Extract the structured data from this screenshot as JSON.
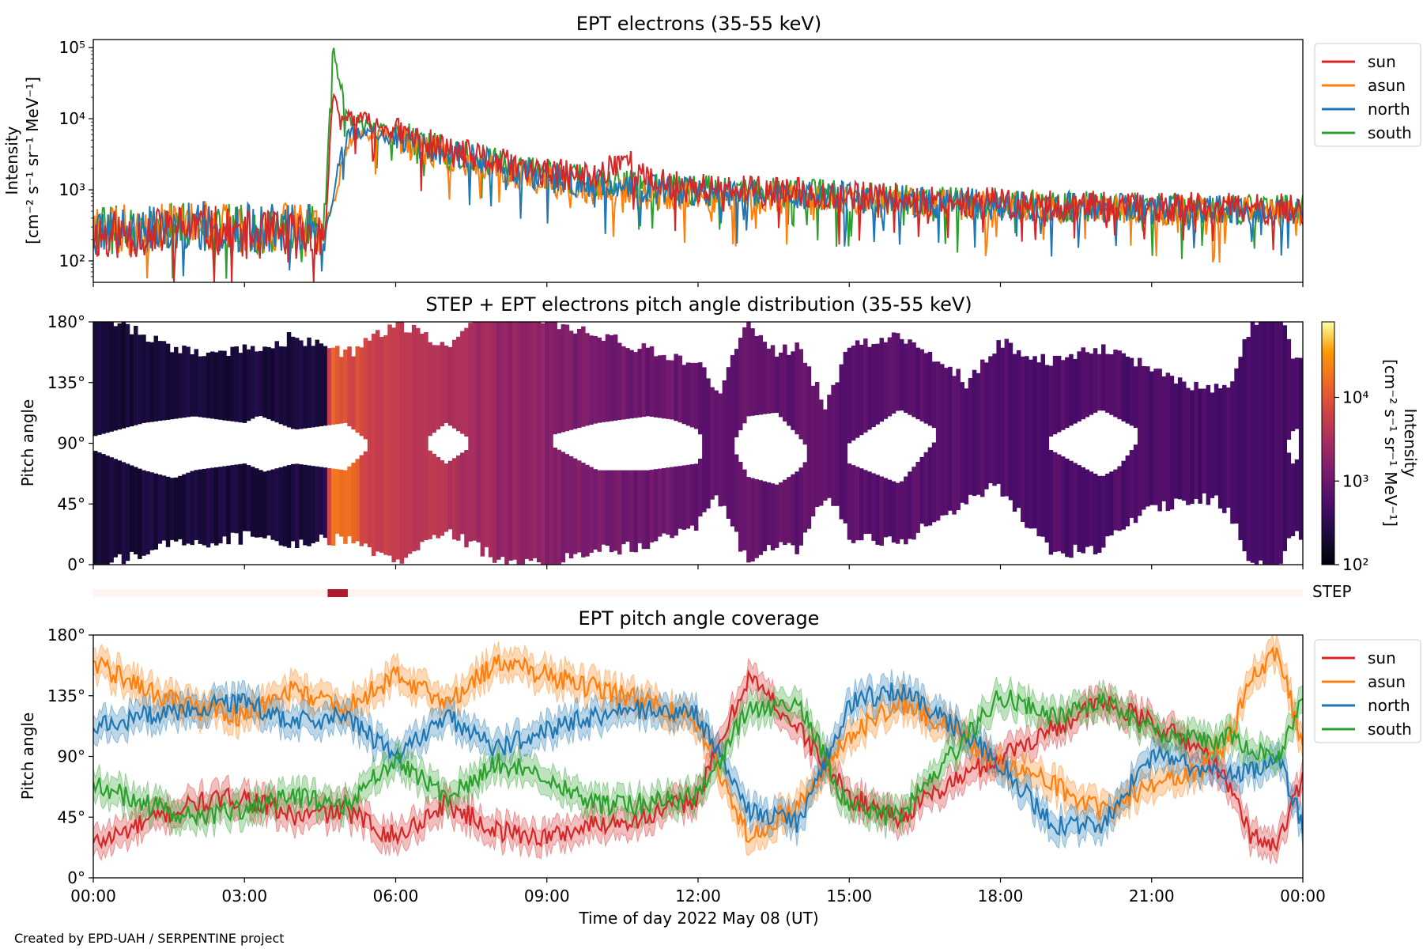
{
  "figure": {
    "credit": "Created by EPD-UAH / SERPENTINE project",
    "xlabel": "Time of day 2022 May 08 (UT)",
    "xticks": [
      "00:00",
      "03:00",
      "06:00",
      "09:00",
      "12:00",
      "15:00",
      "18:00",
      "21:00",
      "00:00"
    ]
  },
  "colors": {
    "sun": "#d62728",
    "asun": "#ff7f0e",
    "north": "#1f77b4",
    "south": "#2ca02c",
    "step_bar": "#b2182b",
    "step_background": "#fff5f0"
  },
  "chart_data": [
    {
      "type": "line",
      "title": "EPT electrons (35-55 keV)",
      "ylabel": "Intensity",
      "yunit": "[cm⁻² s⁻¹ sr⁻¹ MeV⁻¹]",
      "yscale": "log",
      "ylim": [
        50,
        130000
      ],
      "ytick_labels": [
        "10²",
        "10³",
        "10⁴",
        "10⁵"
      ],
      "ytick_values": [
        100,
        1000,
        10000,
        100000
      ],
      "xlim_hours": [
        0,
        24
      ],
      "legend": "right-outside-top",
      "series": [
        {
          "name": "sun",
          "color": "#d62728",
          "x": [
            0,
            1,
            2,
            3,
            4,
            4.6,
            4.75,
            4.9,
            5.1,
            5.5,
            6,
            7,
            8,
            9,
            10,
            10.5,
            11,
            12,
            13,
            14,
            15,
            16,
            17,
            18,
            19,
            20,
            21,
            22,
            23,
            24
          ],
          "y": [
            230,
            240,
            300,
            230,
            230,
            240,
            21000,
            9000,
            11000,
            9000,
            6500,
            3600,
            2400,
            1700,
            1500,
            3000,
            1300,
            1050,
            950,
            900,
            850,
            750,
            700,
            650,
            600,
            580,
            570,
            560,
            540,
            530
          ]
        },
        {
          "name": "asun",
          "color": "#ff7f0e",
          "x": [
            0,
            1,
            2,
            3,
            4,
            4.6,
            4.75,
            4.9,
            5.1,
            5.5,
            6,
            7,
            8,
            9,
            10,
            10.5,
            11,
            12,
            13,
            14,
            15,
            16,
            17,
            18,
            19,
            20,
            21,
            22,
            23,
            24
          ],
          "y": [
            280,
            300,
            320,
            290,
            290,
            300,
            600,
            1800,
            5000,
            6000,
            5000,
            3000,
            2000,
            1300,
            1000,
            950,
            850,
            800,
            750,
            720,
            700,
            650,
            620,
            600,
            560,
            540,
            520,
            500,
            490,
            480
          ]
        },
        {
          "name": "north",
          "color": "#1f77b4",
          "x": [
            0,
            1,
            2,
            3,
            4,
            4.6,
            4.75,
            4.9,
            5.1,
            5.5,
            6,
            7,
            8,
            9,
            10,
            10.5,
            11,
            12,
            13,
            14,
            15,
            16,
            17,
            18,
            19,
            20,
            21,
            22,
            23,
            24
          ],
          "y": [
            270,
            290,
            320,
            290,
            290,
            300,
            800,
            3000,
            6500,
            7000,
            5500,
            3300,
            2300,
            1500,
            1200,
            1100,
            1000,
            950,
            900,
            850,
            800,
            700,
            650,
            600,
            580,
            560,
            540,
            520,
            510,
            500
          ]
        },
        {
          "name": "south",
          "color": "#2ca02c",
          "x": [
            0,
            1,
            2,
            3,
            4,
            4.6,
            4.75,
            4.9,
            5.1,
            5.5,
            6,
            7,
            8,
            9,
            10,
            10.5,
            11,
            12,
            13,
            14,
            15,
            16,
            17,
            18,
            19,
            20,
            21,
            22,
            23,
            24
          ],
          "y": [
            260,
            280,
            310,
            280,
            280,
            400,
            90000,
            30000,
            10000,
            7500,
            6000,
            3500,
            2400,
            1600,
            1300,
            1200,
            1100,
            1000,
            950,
            880,
            820,
            720,
            680,
            640,
            600,
            570,
            550,
            530,
            520,
            510
          ]
        }
      ]
    },
    {
      "type": "heatmap",
      "title": "STEP + EPT electrons pitch angle distribution (35-55 keV)",
      "ylabel": "Pitch angle",
      "ytick_labels": [
        "0°",
        "45°",
        "90°",
        "135°",
        "180°"
      ],
      "ytick_values": [
        0,
        45,
        90,
        135,
        180
      ],
      "ylim": [
        0,
        180
      ],
      "xlim_hours": [
        0,
        24
      ],
      "colorbar": {
        "label": "Intensity",
        "unit": "[cm⁻² s⁻¹ sr⁻¹ MeV⁻¹]",
        "scale": "log",
        "colormap": "inferno",
        "range": [
          100,
          80000
        ],
        "tick_labels": [
          "10²",
          "10³",
          "10⁴"
        ],
        "tick_values": [
          100,
          1000,
          10000
        ]
      },
      "intensity_profile": {
        "x": [
          0,
          2,
          4.6,
          4.7,
          5,
          5.5,
          6,
          7,
          8,
          9,
          10,
          11,
          12,
          13,
          14,
          15,
          16,
          17,
          18,
          19,
          20,
          21,
          22,
          23,
          24
        ],
        "y": [
          200,
          220,
          230,
          12000,
          9000,
          7000,
          5500,
          3500,
          2300,
          1600,
          1200,
          1000,
          900,
          850,
          800,
          750,
          700,
          650,
          620,
          600,
          580,
          560,
          540,
          520,
          500
        ]
      }
    },
    {
      "type": "bar",
      "label": "STEP",
      "coverage_hours": [
        [
          4.65,
          5.05
        ]
      ]
    },
    {
      "type": "line",
      "title": "EPT pitch angle coverage",
      "ylabel": "Pitch angle",
      "ytick_labels": [
        "0°",
        "45°",
        "90°",
        "135°",
        "180°"
      ],
      "ytick_values": [
        0,
        45,
        90,
        135,
        180
      ],
      "ylim": [
        0,
        180
      ],
      "xlim_hours": [
        0,
        24
      ],
      "legend": "right-outside-top",
      "band": "shaded uncertainty around each series",
      "series": [
        {
          "name": "sun",
          "color": "#d62728",
          "x": [
            0,
            1,
            2,
            3,
            4,
            5,
            6,
            7,
            8,
            9,
            10,
            11,
            12,
            13,
            14,
            15,
            16,
            17,
            18,
            19,
            20,
            21,
            22,
            22.5,
            23,
            23.5,
            24
          ],
          "y": [
            25,
            40,
            55,
            60,
            45,
            50,
            30,
            55,
            35,
            30,
            40,
            45,
            60,
            150,
            110,
            60,
            45,
            70,
            90,
            110,
            130,
            115,
            95,
            70,
            30,
            25,
            75
          ]
        },
        {
          "name": "asun",
          "color": "#ff7f0e",
          "x": [
            0,
            1,
            2,
            3,
            4,
            5,
            6,
            7,
            8,
            9,
            10,
            11,
            12,
            13,
            14,
            15,
            16,
            17,
            18,
            19,
            20,
            21,
            22,
            22.5,
            23,
            23.5,
            24
          ],
          "y": [
            160,
            140,
            125,
            120,
            140,
            125,
            150,
            130,
            160,
            150,
            140,
            130,
            115,
            30,
            55,
            105,
            130,
            110,
            85,
            70,
            50,
            70,
            80,
            100,
            150,
            165,
            100
          ]
        },
        {
          "name": "north",
          "color": "#1f77b4",
          "x": [
            0,
            1,
            2,
            3,
            4,
            5,
            6,
            7,
            8,
            9,
            10,
            11,
            12,
            13,
            14,
            15,
            16,
            17,
            18,
            19,
            20,
            21,
            22,
            22.5,
            23,
            23.5,
            24
          ],
          "y": [
            110,
            120,
            125,
            130,
            115,
            120,
            90,
            120,
            95,
            110,
            120,
            125,
            120,
            50,
            40,
            130,
            140,
            115,
            85,
            40,
            40,
            90,
            80,
            75,
            80,
            90,
            40
          ]
        },
        {
          "name": "south",
          "color": "#2ca02c",
          "x": [
            0,
            1,
            2,
            3,
            4,
            5,
            6,
            7,
            8,
            9,
            10,
            11,
            12,
            13,
            14,
            15,
            16,
            17,
            18,
            19,
            20,
            21,
            22,
            22.5,
            23,
            23.5,
            24
          ],
          "y": [
            70,
            55,
            45,
            50,
            60,
            55,
            90,
            60,
            85,
            75,
            55,
            55,
            60,
            125,
            130,
            50,
            45,
            90,
            135,
            120,
            130,
            110,
            100,
            105,
            95,
            90,
            130
          ]
        }
      ]
    }
  ]
}
